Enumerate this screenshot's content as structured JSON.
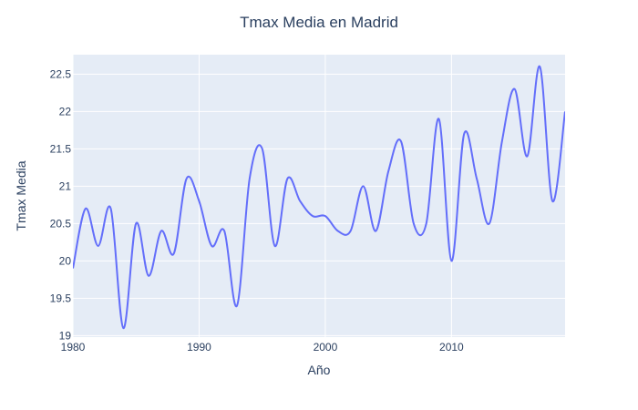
{
  "chart_data": {
    "type": "line",
    "title": "Tmax Media en Madrid",
    "xlabel": "Año",
    "ylabel": "Tmax Media",
    "xlim": [
      1980,
      2019
    ],
    "ylim": [
      18.98,
      22.76
    ],
    "x_ticks": [
      1980,
      1990,
      2000,
      2010
    ],
    "x_tick_labels": [
      "1980",
      "1990",
      "2000",
      "2010"
    ],
    "y_ticks": [
      19,
      19.5,
      20,
      20.5,
      21,
      21.5,
      22,
      22.5
    ],
    "y_tick_labels": [
      "19",
      "19.5",
      "20",
      "20.5",
      "21",
      "21.5",
      "22",
      "22.5"
    ],
    "grid": true,
    "line_shape": "spline",
    "colors": {
      "line": "#636efa",
      "plot_bg": "#e5ecf6",
      "grid": "#ffffff",
      "text": "#2a3f5f"
    },
    "x": [
      1980,
      1981,
      1982,
      1983,
      1984,
      1985,
      1986,
      1987,
      1988,
      1989,
      1990,
      1991,
      1992,
      1993,
      1994,
      1995,
      1996,
      1997,
      1998,
      1999,
      2000,
      2001,
      2002,
      2003,
      2004,
      2005,
      2006,
      2007,
      2008,
      2009,
      2010,
      2011,
      2012,
      2013,
      2014,
      2015,
      2016,
      2017,
      2018,
      2019
    ],
    "series": [
      {
        "values": [
          19.9,
          20.7,
          20.2,
          20.7,
          19.1,
          20.5,
          19.8,
          20.4,
          20.1,
          21.1,
          20.8,
          20.2,
          20.4,
          19.4,
          21.1,
          21.5,
          20.2,
          21.1,
          20.8,
          20.6,
          20.6,
          20.4,
          20.4,
          21.0,
          20.4,
          21.2,
          21.6,
          20.5,
          20.5,
          21.9,
          20.0,
          21.7,
          21.1,
          20.5,
          21.6,
          22.3,
          21.4,
          22.6,
          20.8,
          22.0
        ]
      }
    ]
  }
}
